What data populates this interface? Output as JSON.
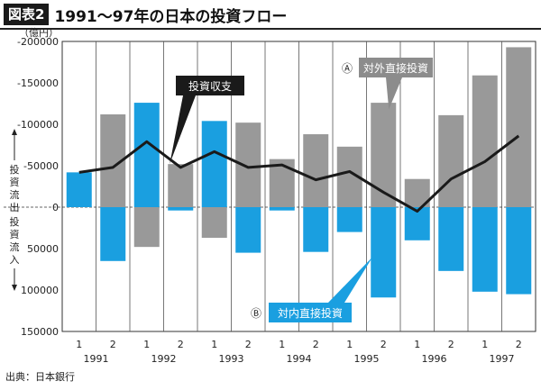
{
  "header": {
    "badge": "図表2",
    "title": "1991〜97年の日本の投資フロー"
  },
  "source": "出典：日本銀行",
  "chart_data": {
    "type": "bar",
    "title": "1991〜97年の日本の投資フロー",
    "unit_label": "（億円）",
    "y_axis_inverted": true,
    "ylim": [
      -200000,
      150000
    ],
    "y_ticks": [
      -200000,
      -150000,
      -100000,
      -50000,
      0,
      50000,
      100000,
      150000
    ],
    "y_tick_labels": [
      "-200000",
      "-150000",
      "-100000",
      "-50000",
      "0",
      "50000",
      "100000",
      "150000"
    ],
    "grid": "vertical lines between periods",
    "categories": [
      "1991-1",
      "1991-2",
      "1992-1",
      "1992-2",
      "1993-1",
      "1993-2",
      "1994-1",
      "1994-2",
      "1995-1",
      "1995-2",
      "1996-1",
      "1996-2",
      "1997-1",
      "1997-2"
    ],
    "x_tick_halves": [
      "1",
      "2",
      "1",
      "2",
      "1",
      "2",
      "1",
      "2",
      "1",
      "2",
      "1",
      "2",
      "1",
      "2"
    ],
    "x_tick_years": [
      "1991",
      "1992",
      "1993",
      "1994",
      "1995",
      "1996",
      "1997"
    ],
    "series": [
      {
        "name": "対外直接投資",
        "label_marker": "Ⓐ",
        "color": "#999999",
        "values": [
          0,
          -112000,
          48000,
          -52000,
          37000,
          -102000,
          -58000,
          -88000,
          -73000,
          -126000,
          -34000,
          -111000,
          -159000,
          -193000
        ]
      },
      {
        "name": "対内直接投資",
        "label_marker": "Ⓑ",
        "color": "#1a9fe0",
        "values": [
          -42000,
          65000,
          -126000,
          4000,
          -104000,
          55000,
          4000,
          54000,
          30000,
          109000,
          40000,
          77000,
          102000,
          105000
        ]
      },
      {
        "name": "投資収支",
        "type": "line",
        "color": "#1a1a1a",
        "values": [
          -42000,
          -48000,
          -79000,
          -48000,
          -67000,
          -48000,
          -51000,
          -33000,
          -43000,
          -18000,
          5000,
          -34000,
          -55000,
          -86000
        ]
      }
    ],
    "side_labels": {
      "outflow": "投資流出",
      "inflow": "投資流入"
    }
  }
}
